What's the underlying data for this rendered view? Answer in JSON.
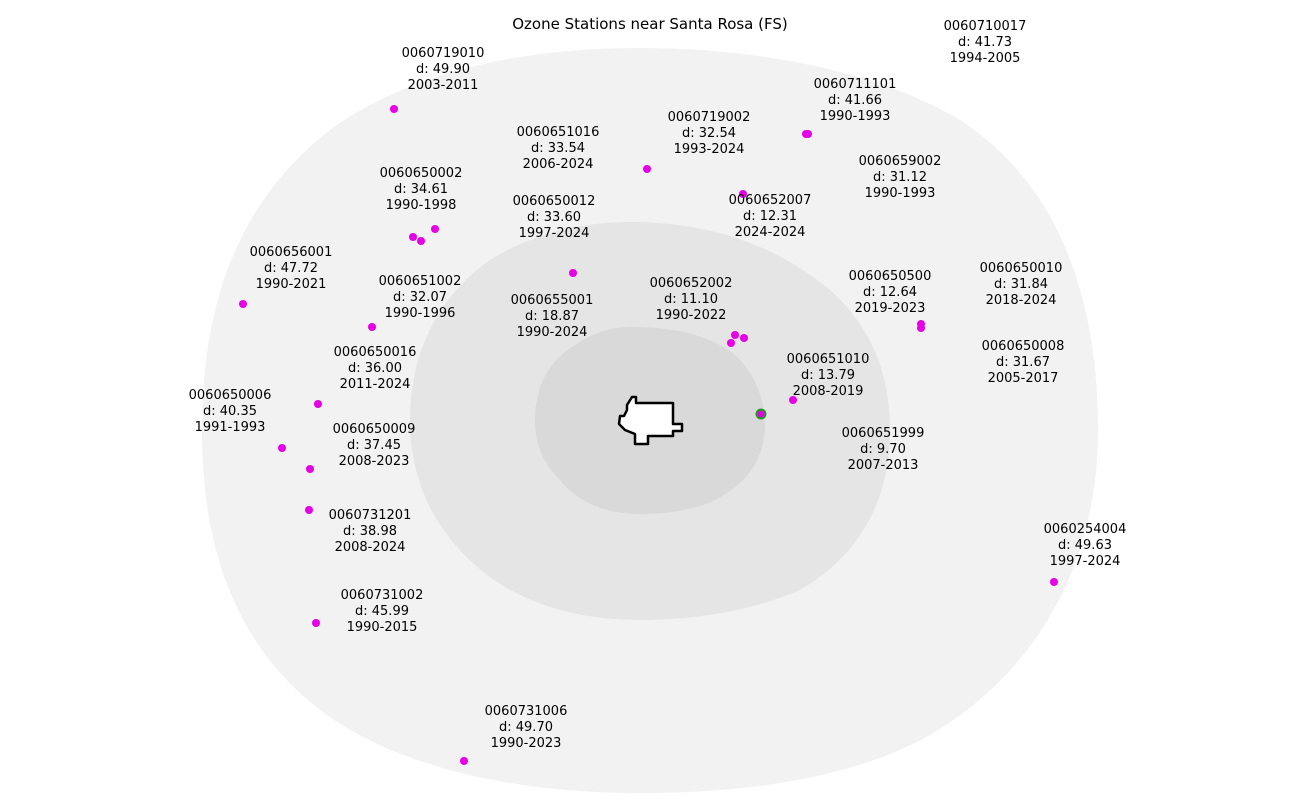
{
  "title": "Ozone Stations near Santa Rosa (FS)",
  "colors": {
    "buffer_outer": "#f2f2f2",
    "buffer_middle": "#e5e5e5",
    "buffer_inner": "#d9d9d9",
    "station_marker": "#e600e6",
    "highlight_ring": "#1a9e1a",
    "city_fill": "#ffffff",
    "city_outline": "#000000"
  },
  "city": {
    "name": "Santa Rosa"
  },
  "stations": [
    {
      "id": "0060710017",
      "distance": "d: 41.73",
      "years": "1994-2005"
    },
    {
      "id": "0060719010",
      "distance": "d: 49.90",
      "years": "2003-2011"
    },
    {
      "id": "0060711101",
      "distance": "d: 41.66",
      "years": "1990-1993"
    },
    {
      "id": "0060719002",
      "distance": "d: 32.54",
      "years": "1993-2024"
    },
    {
      "id": "0060651016",
      "distance": "d: 33.54",
      "years": "2006-2024"
    },
    {
      "id": "0060659002",
      "distance": "d: 31.12",
      "years": "1990-1993"
    },
    {
      "id": "0060650002",
      "distance": "d: 34.61",
      "years": "1990-1998"
    },
    {
      "id": "0060650012",
      "distance": "d: 33.60",
      "years": "1997-2024"
    },
    {
      "id": "0060652007",
      "distance": "d: 12.31",
      "years": "2024-2024"
    },
    {
      "id": "0060656001",
      "distance": "d: 47.72",
      "years": "1990-2021"
    },
    {
      "id": "0060650010",
      "distance": "d: 31.84",
      "years": "2018-2024"
    },
    {
      "id": "0060650500",
      "distance": "d: 12.64",
      "years": "2019-2023"
    },
    {
      "id": "0060651002",
      "distance": "d: 32.07",
      "years": "1990-1996"
    },
    {
      "id": "0060652002",
      "distance": "d: 11.10",
      "years": "1990-2022"
    },
    {
      "id": "0060655001",
      "distance": "d: 18.87",
      "years": "1990-2024"
    },
    {
      "id": "0060650008",
      "distance": "d: 31.67",
      "years": "2005-2017"
    },
    {
      "id": "0060650016",
      "distance": "d: 36.00",
      "years": "2011-2024"
    },
    {
      "id": "0060651010",
      "distance": "d: 13.79",
      "years": "2008-2019"
    },
    {
      "id": "0060650006",
      "distance": "d: 40.35",
      "years": "1991-1993"
    },
    {
      "id": "0060650009",
      "distance": "d: 37.45",
      "years": "2008-2023"
    },
    {
      "id": "0060651999",
      "distance": "d: 9.70",
      "years": "2007-2013"
    },
    {
      "id": "0060731201",
      "distance": "d: 38.98",
      "years": "2008-2024"
    },
    {
      "id": "0060254004",
      "distance": "d: 49.63",
      "years": "1997-2024"
    },
    {
      "id": "0060731002",
      "distance": "d: 45.99",
      "years": "1990-2015"
    },
    {
      "id": "0060731006",
      "distance": "d: 49.70",
      "years": "1990-2023"
    }
  ]
}
